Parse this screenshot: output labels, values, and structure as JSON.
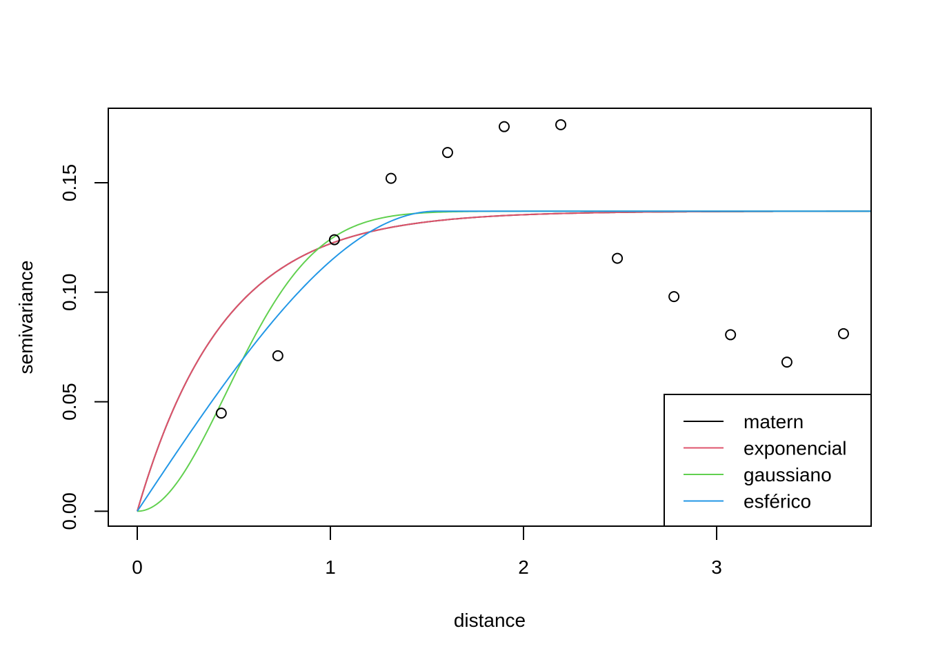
{
  "chart_data": {
    "type": "scatter",
    "title": "",
    "xlabel": "distance",
    "ylabel": "semivariance",
    "xlim": [
      -0.15,
      3.8
    ],
    "ylim": [
      -0.0068,
      0.184
    ],
    "x_ticks": [
      {
        "value": 0,
        "label": "0"
      },
      {
        "value": 1,
        "label": "1"
      },
      {
        "value": 2,
        "label": "2"
      },
      {
        "value": 3,
        "label": "3"
      }
    ],
    "y_ticks": [
      {
        "value": 0,
        "label": "0.00"
      },
      {
        "value": 0.05,
        "label": "0.05"
      },
      {
        "value": 0.1,
        "label": "0.10"
      },
      {
        "value": 0.15,
        "label": "0.15"
      }
    ],
    "points": {
      "x": [
        0.435,
        0.728,
        1.021,
        1.314,
        1.607,
        1.9,
        2.193,
        2.486,
        2.779,
        3.072,
        3.364,
        3.657
      ],
      "y": [
        0.0448,
        0.071,
        0.124,
        0.152,
        0.1638,
        0.1756,
        0.1765,
        0.1155,
        0.098,
        0.0806,
        0.0681,
        0.0811
      ]
    },
    "models": {
      "nugget": 0,
      "sill": 0.137,
      "range_exponential": 0.45,
      "range_gaussian": 0.65,
      "range_spherical": 1.55
    },
    "series": [
      {
        "name": "matern",
        "model": "exponential",
        "color": "#000000"
      },
      {
        "name": "exponencial",
        "model": "exponential",
        "color": "#DF536B"
      },
      {
        "name": "gaussiano",
        "model": "gaussian",
        "color": "#61D04F"
      },
      {
        "name": "esférico",
        "model": "spherical",
        "color": "#2297E6"
      }
    ],
    "legend": {
      "position": "bottom-right",
      "entries": [
        "matern",
        "exponencial",
        "gaussiano",
        "esférico"
      ]
    },
    "grid": false
  }
}
